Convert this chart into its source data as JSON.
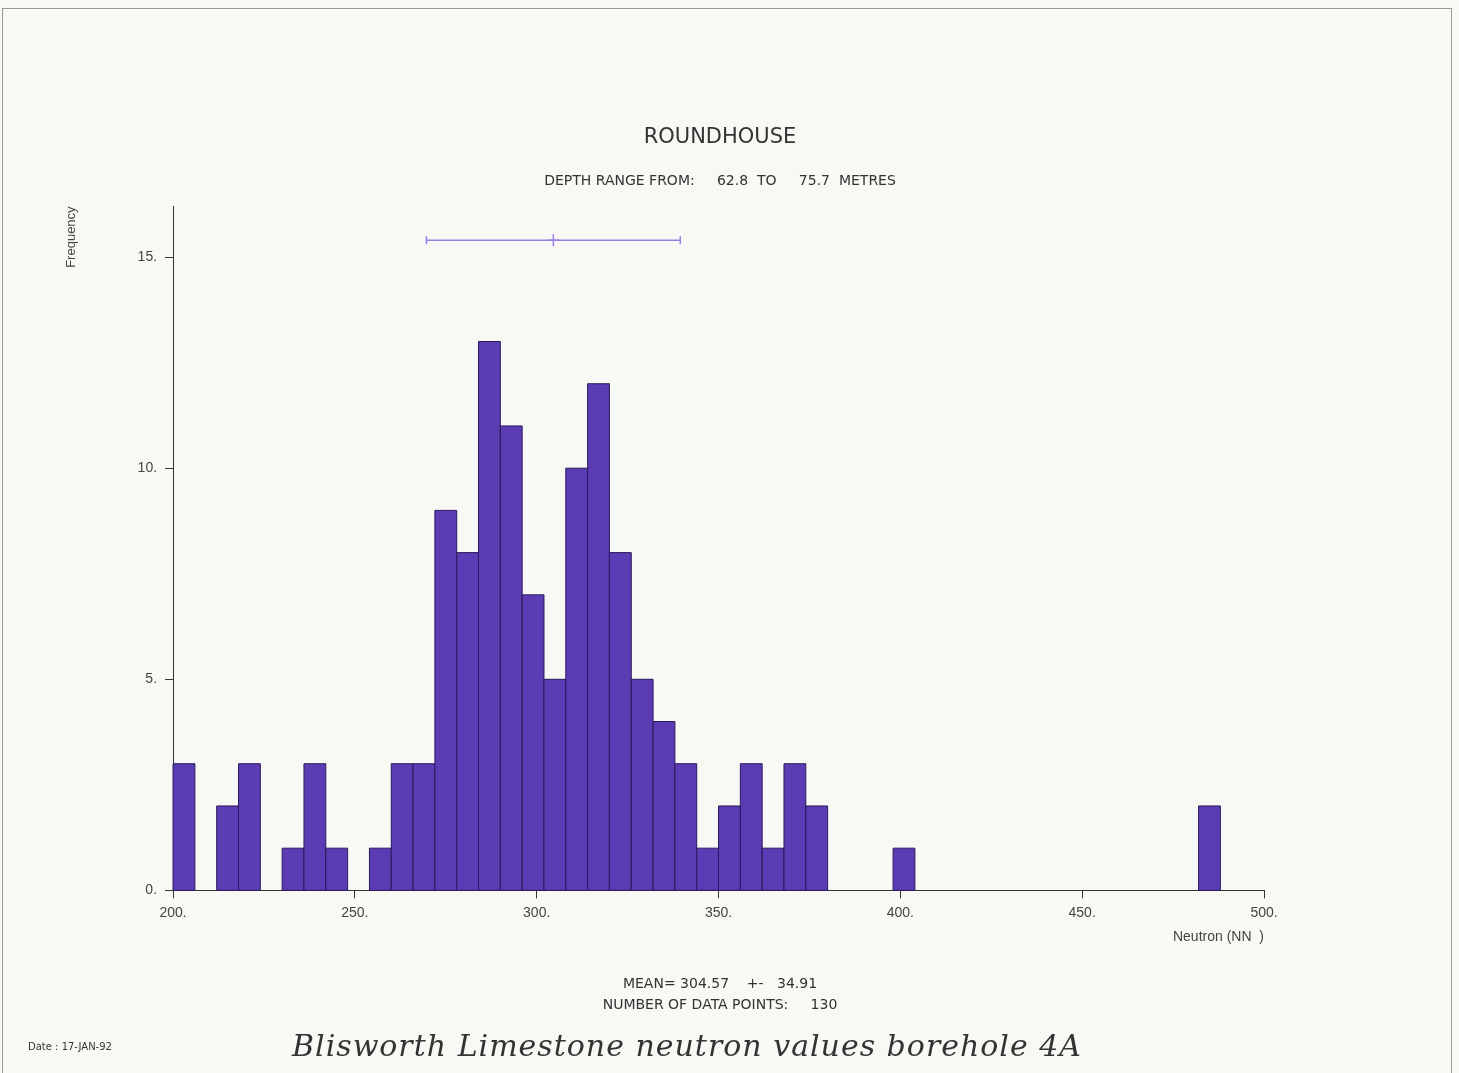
{
  "chart_data": {
    "type": "histogram",
    "title": "ROUNDHOUSE",
    "subtitle": "DEPTH RANGE FROM:     62.8  TO     75.7  METRES",
    "xlabel": "Neutron (NN  )",
    "ylabel": "Frequency",
    "bins": [
      200,
      206,
      212,
      218,
      224,
      230,
      236,
      242,
      248,
      254,
      260,
      266,
      272,
      278,
      284,
      290,
      296,
      302,
      308,
      314,
      320,
      326,
      332,
      338,
      344,
      350,
      356,
      362,
      368,
      374,
      380,
      386,
      392,
      398,
      404,
      410,
      416,
      422,
      428,
      434,
      440,
      446,
      452,
      458,
      464,
      470,
      476,
      482,
      488,
      494,
      500
    ],
    "values": [
      3,
      0,
      2,
      3,
      0,
      1,
      3,
      1,
      0,
      1,
      3,
      3,
      9,
      8,
      13,
      11,
      7,
      5,
      10,
      12,
      8,
      5,
      4,
      3,
      1,
      2,
      3,
      1,
      3,
      2,
      0,
      0,
      0,
      1,
      0,
      0,
      0,
      0,
      0,
      0,
      0,
      0,
      0,
      0,
      0,
      0,
      0,
      2,
      0,
      0
    ],
    "color": "#5b3cb4",
    "series": [
      {
        "type": "scatter",
        "x": [
          304.57
        ],
        "values": [
          15.4
        ],
        "xerrors": [
          34.91
        ],
        "color": "#9a7ee6",
        "marker": "cross"
      }
    ],
    "xlim": [
      200,
      500
    ],
    "ylim": [
      0,
      16.2
    ],
    "xticks": [
      {
        "value": 200,
        "label": "200."
      },
      {
        "value": 250,
        "label": "250."
      },
      {
        "value": 300,
        "label": "300."
      },
      {
        "value": 350,
        "label": "350."
      },
      {
        "value": 400,
        "label": "400."
      },
      {
        "value": 450,
        "label": "450."
      },
      {
        "value": 500,
        "label": "500."
      }
    ],
    "yticks": [
      {
        "value": 0,
        "label": "0."
      },
      {
        "value": 5,
        "label": "5."
      },
      {
        "value": 10,
        "label": "10."
      },
      {
        "value": 15,
        "label": "15."
      }
    ],
    "grid": false,
    "legend": false,
    "annotations": [
      "MEAN= 304.57    +-   34.91",
      "NUMBER OF DATA POINTS:     130",
      "Date : 17-JAN-92",
      "Blisworth Limestone neutron values borehole 4A"
    ]
  }
}
